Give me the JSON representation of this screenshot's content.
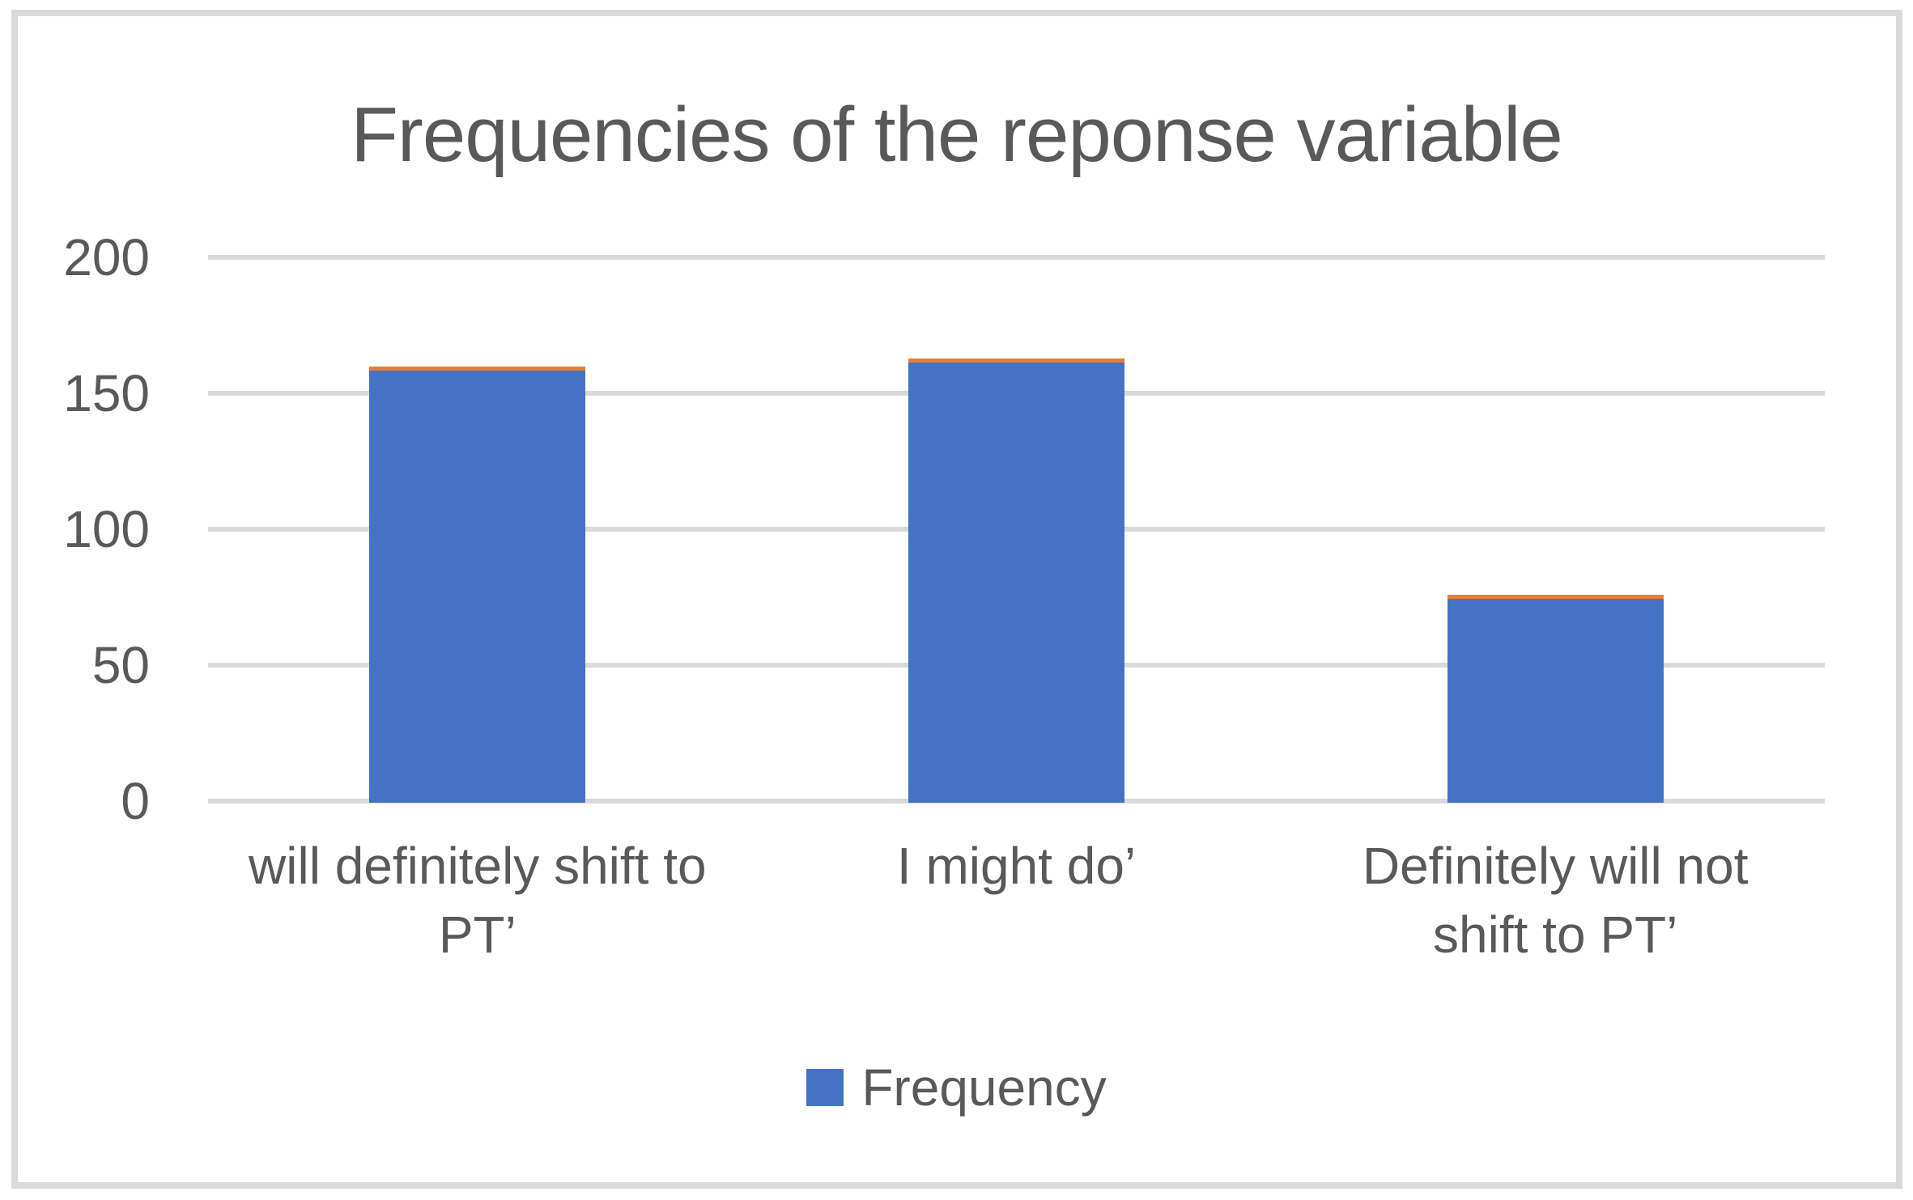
{
  "chart": {
    "title": "Frequencies of the reponse variable",
    "legend_label": "Frequency"
  },
  "chart_data": {
    "type": "bar",
    "title": "Frequencies of the reponse variable",
    "categories": [
      "will definitely shift to PT’",
      "I might do’",
      "Definitely will not shift to PT’"
    ],
    "category_label_lines": [
      [
        "will definitely shift to",
        "PT’"
      ],
      [
        "I might do’"
      ],
      [
        "Definitely will not",
        "shift to PT’"
      ]
    ],
    "series": [
      {
        "name": "Frequency",
        "values": [
          159,
          162,
          75
        ]
      }
    ],
    "xlabel": "",
    "ylabel": "",
    "y_ticks": [
      0,
      50,
      100,
      150,
      200
    ],
    "ylim": [
      0,
      200
    ],
    "grid": true,
    "legend_position": "bottom-center",
    "colors": {
      "bar_fill": "#4472C4",
      "bar_top_edge": "#ED7D31",
      "grid_line": "#D9D9D9",
      "axis_text": "#595959",
      "title_text": "#595959",
      "frame_border": "#D9D9D9",
      "background": "#FFFFFF"
    }
  }
}
